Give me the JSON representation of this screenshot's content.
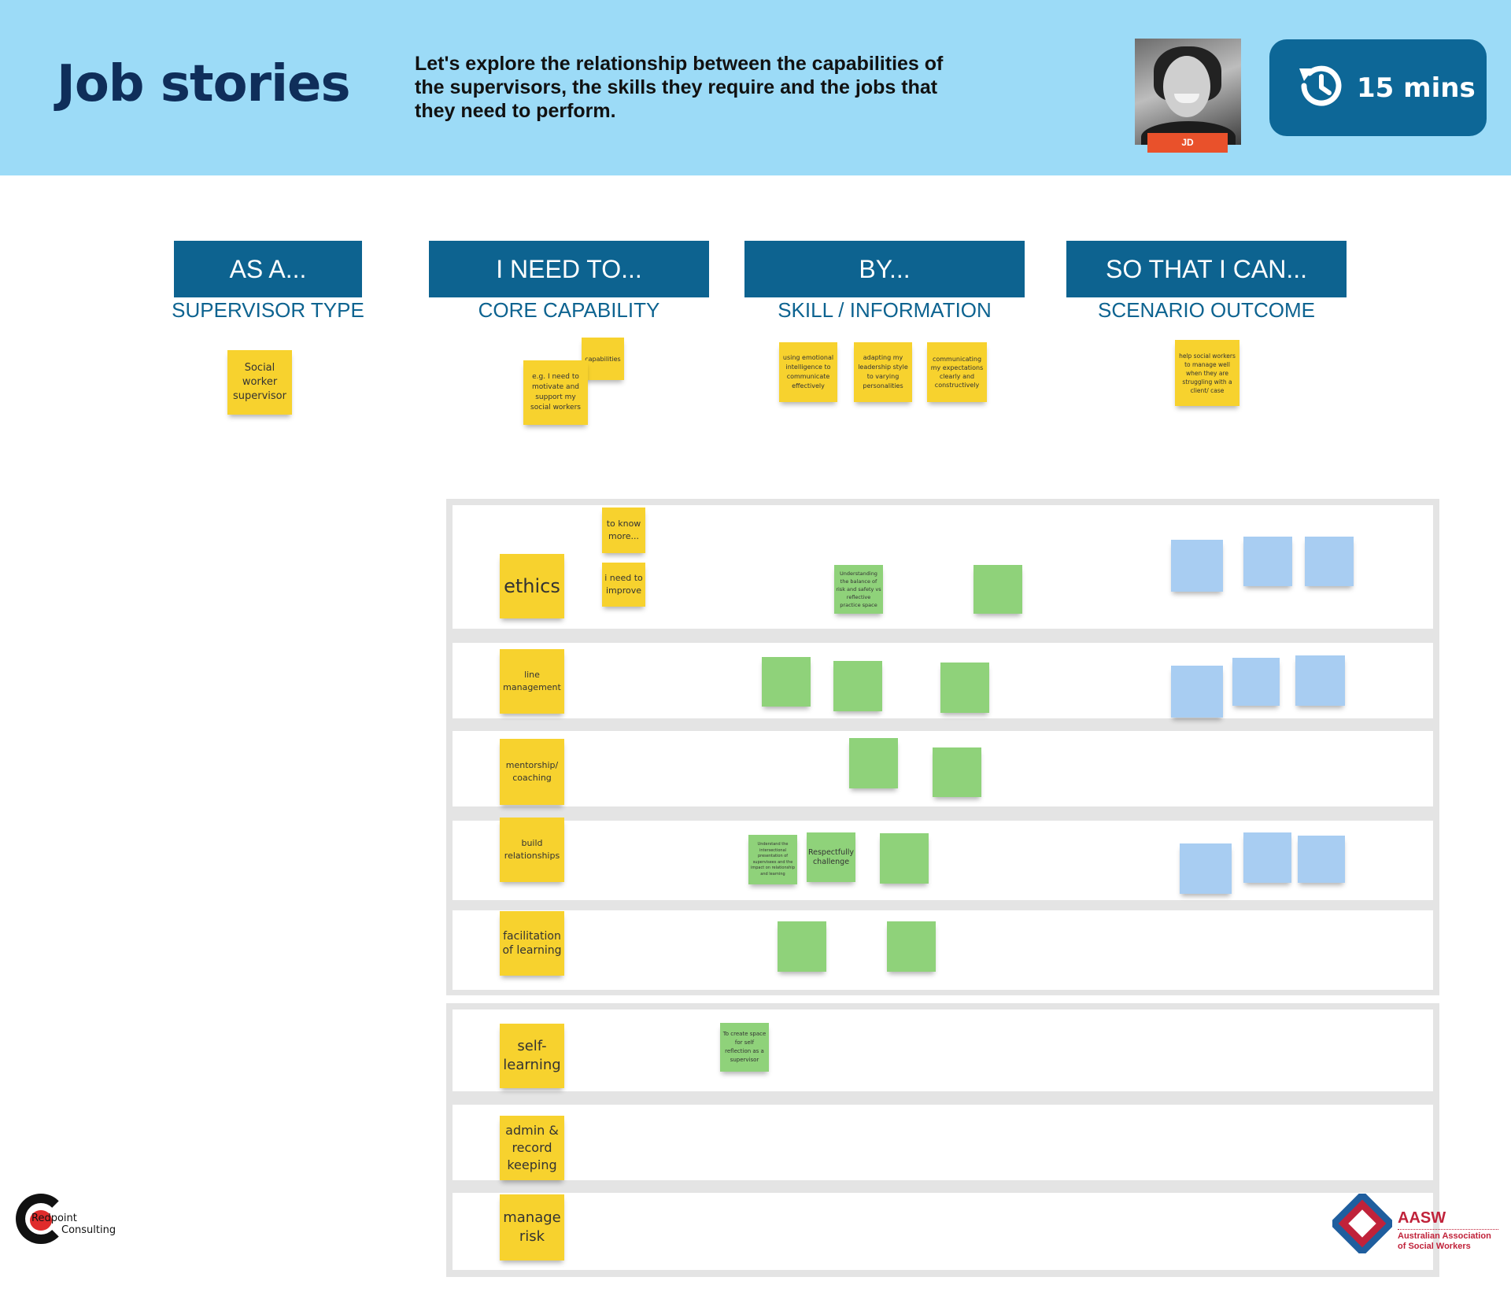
{
  "header": {
    "title": "Job stories",
    "description": "Let's explore the relationship between the capabilities of the supervisors, the skills they require and the jobs that they need to perform.",
    "presenter_initials": "JD",
    "timer_label": "15 mins",
    "timer_icon": "history-clock-icon"
  },
  "columns": [
    {
      "title": "AS A...",
      "subtitle": "SUPERVISOR TYPE"
    },
    {
      "title": "I NEED TO...",
      "subtitle": "CORE CAPABILITY"
    },
    {
      "title": "BY...",
      "subtitle": "SKILL / INFORMATION"
    },
    {
      "title": "SO THAT I CAN...",
      "subtitle": "SCENARIO OUTCOME"
    }
  ],
  "example_notes": {
    "supervisor_type": "Social worker supervisor",
    "capabilities_tag": "capabilities",
    "core_capability": "e.g. I need to motivate and support my social workers",
    "skills": [
      "using emotional intelligence to communicate effectively",
      "adapting my leadership style to varying personalities",
      "communicating my expectations clearly and constructively"
    ],
    "scenario_outcome": "help social workers to manage well when they are struggling with a client/ case"
  },
  "rows": [
    {
      "label": "ethics"
    },
    {
      "label": "line management"
    },
    {
      "label": "mentorship/ coaching"
    },
    {
      "label": "build relationships"
    },
    {
      "label": "facilitation of learning"
    },
    {
      "label": "self-learning"
    },
    {
      "label": "admin & record keeping"
    },
    {
      "label": "manage risk"
    }
  ],
  "row_notes": {
    "to_know_more": "to know more...",
    "i_need_to_improve": "i need to improve",
    "ethics_skill": "Understanding the balance of risk and safety vs reflective practice space",
    "relationships_skill_1": "Understand the intersectional presentation of supervisees and the impact on relationship and learning",
    "relationships_skill_2": "Respectfully challenge",
    "self_learning_skill": "To create space for self reflection as a supervisor"
  },
  "logos": {
    "redpoint_line1": "Redpoint",
    "redpoint_line2": "Consulting",
    "aasw_acronym": "AASW",
    "aasw_line1": "Australian Association",
    "aasw_line2": "of Social Workers"
  },
  "colors": {
    "header_bg": "#9cdbf7",
    "title": "#0f2e5a",
    "column_header": "#0d6390",
    "timer_bg": "#0d6797",
    "sticky_yellow": "#f7d22e",
    "sticky_green": "#8fd27a",
    "sticky_blue": "#a8cdf2",
    "presenter_tag": "#e9512b",
    "aasw_red": "#c0223a"
  }
}
